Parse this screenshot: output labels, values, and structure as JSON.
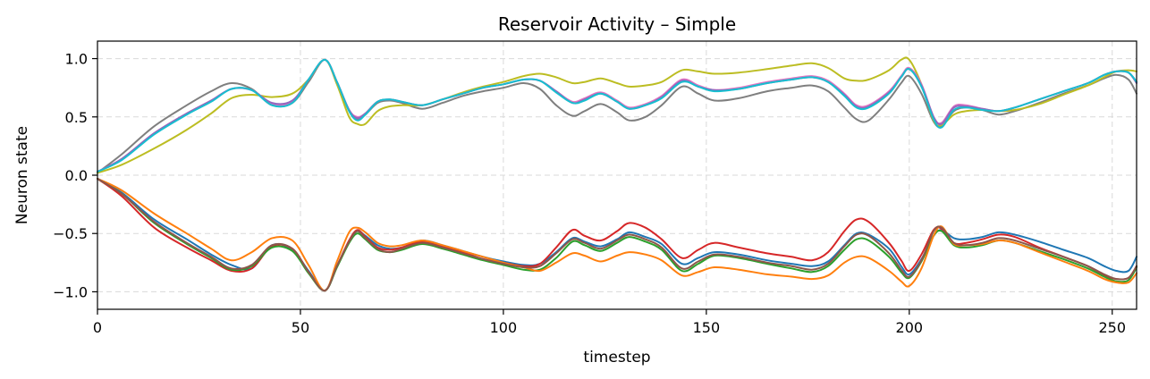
{
  "chart_data": {
    "type": "line",
    "title": "Reservoir Activity – Simple",
    "xlabel": "timestep",
    "ylabel": "Neuron state",
    "xlim": [
      0,
      256
    ],
    "ylim": [
      -1.15,
      1.15
    ],
    "xticks": [
      0,
      50,
      100,
      150,
      200,
      250
    ],
    "xtick_labels": [
      "0",
      "50",
      "100",
      "150",
      "200",
      "250"
    ],
    "yticks": [
      1.0,
      0.5,
      0.0,
      -0.5,
      -1.0
    ],
    "ytick_labels": [
      "1.0",
      "0.5",
      "0.0",
      "−0.5",
      "−1.0"
    ],
    "grid": true,
    "legend": "none",
    "x": [
      0,
      6,
      14,
      22,
      28,
      33,
      38,
      43,
      48,
      52,
      56,
      59,
      62,
      64,
      66,
      69,
      72,
      75,
      80,
      85,
      90,
      95,
      100,
      105,
      109,
      113,
      117,
      120,
      124,
      128,
      131,
      135,
      139,
      144,
      148,
      152,
      158,
      165,
      171,
      176,
      180,
      184,
      187,
      190,
      195,
      198,
      200,
      203,
      206,
      208,
      211,
      214,
      218,
      222,
      226,
      232,
      238,
      244,
      248,
      251,
      254,
      256
    ],
    "series": [
      {
        "color": "#7f7f7f",
        "values": [
          0.02,
          0.18,
          0.42,
          0.6,
          0.72,
          0.79,
          0.74,
          0.6,
          0.62,
          0.8,
          0.99,
          0.8,
          0.55,
          0.48,
          0.52,
          0.62,
          0.64,
          0.62,
          0.57,
          0.62,
          0.68,
          0.72,
          0.75,
          0.79,
          0.74,
          0.6,
          0.51,
          0.55,
          0.61,
          0.54,
          0.47,
          0.5,
          0.6,
          0.76,
          0.7,
          0.64,
          0.66,
          0.72,
          0.75,
          0.77,
          0.72,
          0.58,
          0.48,
          0.47,
          0.65,
          0.79,
          0.85,
          0.7,
          0.46,
          0.42,
          0.55,
          0.58,
          0.56,
          0.52,
          0.55,
          0.62,
          0.7,
          0.77,
          0.83,
          0.86,
          0.82,
          0.7
        ]
      },
      {
        "color": "#bcbd22",
        "values": [
          0.02,
          0.09,
          0.23,
          0.39,
          0.53,
          0.66,
          0.69,
          0.67,
          0.7,
          0.82,
          0.99,
          0.78,
          0.5,
          0.44,
          0.44,
          0.55,
          0.59,
          0.6,
          0.6,
          0.65,
          0.71,
          0.76,
          0.8,
          0.85,
          0.87,
          0.84,
          0.79,
          0.8,
          0.83,
          0.79,
          0.76,
          0.77,
          0.8,
          0.9,
          0.89,
          0.87,
          0.88,
          0.91,
          0.94,
          0.96,
          0.92,
          0.83,
          0.81,
          0.82,
          0.9,
          0.99,
          0.99,
          0.78,
          0.47,
          0.43,
          0.52,
          0.55,
          0.56,
          0.55,
          0.56,
          0.61,
          0.69,
          0.77,
          0.84,
          0.89,
          0.9,
          0.89
        ]
      },
      {
        "color": "#e377c2",
        "values": [
          0.03,
          0.14,
          0.36,
          0.53,
          0.64,
          0.74,
          0.73,
          0.61,
          0.63,
          0.82,
          0.99,
          0.8,
          0.56,
          0.5,
          0.53,
          0.63,
          0.65,
          0.63,
          0.6,
          0.65,
          0.7,
          0.75,
          0.78,
          0.82,
          0.81,
          0.72,
          0.63,
          0.66,
          0.71,
          0.64,
          0.58,
          0.61,
          0.68,
          0.82,
          0.77,
          0.73,
          0.75,
          0.8,
          0.83,
          0.85,
          0.81,
          0.7,
          0.6,
          0.6,
          0.72,
          0.85,
          0.92,
          0.78,
          0.5,
          0.45,
          0.59,
          0.6,
          0.57,
          0.55,
          0.58,
          0.65,
          0.72,
          0.79,
          0.86,
          0.89,
          0.88,
          0.8
        ]
      },
      {
        "color": "#9467bd",
        "values": [
          0.03,
          0.14,
          0.36,
          0.53,
          0.64,
          0.74,
          0.73,
          0.62,
          0.64,
          0.82,
          0.99,
          0.8,
          0.56,
          0.49,
          0.53,
          0.63,
          0.65,
          0.63,
          0.6,
          0.65,
          0.7,
          0.75,
          0.78,
          0.82,
          0.81,
          0.72,
          0.62,
          0.65,
          0.7,
          0.63,
          0.57,
          0.6,
          0.67,
          0.81,
          0.76,
          0.73,
          0.74,
          0.79,
          0.82,
          0.84,
          0.8,
          0.69,
          0.59,
          0.59,
          0.71,
          0.84,
          0.91,
          0.77,
          0.5,
          0.44,
          0.58,
          0.59,
          0.57,
          0.55,
          0.58,
          0.65,
          0.72,
          0.79,
          0.86,
          0.89,
          0.88,
          0.79
        ]
      },
      {
        "color": "#17becf",
        "values": [
          0.03,
          0.13,
          0.35,
          0.52,
          0.63,
          0.74,
          0.73,
          0.6,
          0.62,
          0.82,
          0.99,
          0.8,
          0.55,
          0.47,
          0.52,
          0.63,
          0.65,
          0.63,
          0.6,
          0.65,
          0.7,
          0.75,
          0.78,
          0.82,
          0.81,
          0.71,
          0.62,
          0.64,
          0.7,
          0.63,
          0.57,
          0.6,
          0.66,
          0.8,
          0.76,
          0.72,
          0.74,
          0.79,
          0.82,
          0.84,
          0.8,
          0.68,
          0.58,
          0.58,
          0.7,
          0.84,
          0.91,
          0.76,
          0.48,
          0.41,
          0.56,
          0.58,
          0.56,
          0.55,
          0.58,
          0.65,
          0.72,
          0.79,
          0.86,
          0.89,
          0.88,
          0.8
        ]
      },
      {
        "color": "#1f77b4",
        "values": [
          -0.03,
          -0.15,
          -0.38,
          -0.55,
          -0.68,
          -0.77,
          -0.8,
          -0.6,
          -0.64,
          -0.82,
          -0.99,
          -0.78,
          -0.57,
          -0.48,
          -0.52,
          -0.6,
          -0.63,
          -0.62,
          -0.56,
          -0.6,
          -0.65,
          -0.7,
          -0.74,
          -0.77,
          -0.76,
          -0.66,
          -0.54,
          -0.57,
          -0.61,
          -0.55,
          -0.49,
          -0.53,
          -0.59,
          -0.76,
          -0.71,
          -0.66,
          -0.68,
          -0.73,
          -0.76,
          -0.78,
          -0.74,
          -0.6,
          -0.5,
          -0.51,
          -0.63,
          -0.78,
          -0.85,
          -0.72,
          -0.52,
          -0.47,
          -0.54,
          -0.55,
          -0.53,
          -0.49,
          -0.51,
          -0.57,
          -0.64,
          -0.71,
          -0.78,
          -0.82,
          -0.82,
          -0.7
        ]
      },
      {
        "color": "#d62728",
        "values": [
          -0.03,
          -0.18,
          -0.45,
          -0.62,
          -0.73,
          -0.82,
          -0.8,
          -0.61,
          -0.63,
          -0.83,
          -0.99,
          -0.78,
          -0.56,
          -0.47,
          -0.53,
          -0.62,
          -0.64,
          -0.62,
          -0.57,
          -0.61,
          -0.66,
          -0.72,
          -0.75,
          -0.78,
          -0.76,
          -0.62,
          -0.47,
          -0.52,
          -0.56,
          -0.48,
          -0.41,
          -0.45,
          -0.55,
          -0.71,
          -0.64,
          -0.58,
          -0.62,
          -0.67,
          -0.7,
          -0.73,
          -0.66,
          -0.48,
          -0.38,
          -0.4,
          -0.58,
          -0.73,
          -0.82,
          -0.68,
          -0.47,
          -0.46,
          -0.58,
          -0.58,
          -0.55,
          -0.51,
          -0.53,
          -0.62,
          -0.7,
          -0.78,
          -0.86,
          -0.89,
          -0.88,
          -0.78
        ]
      },
      {
        "color": "#2ca02c",
        "values": [
          -0.03,
          -0.16,
          -0.41,
          -0.59,
          -0.71,
          -0.81,
          -0.78,
          -0.62,
          -0.65,
          -0.84,
          -0.99,
          -0.79,
          -0.58,
          -0.5,
          -0.55,
          -0.64,
          -0.66,
          -0.64,
          -0.59,
          -0.63,
          -0.68,
          -0.73,
          -0.77,
          -0.81,
          -0.81,
          -0.71,
          -0.57,
          -0.6,
          -0.65,
          -0.58,
          -0.53,
          -0.57,
          -0.64,
          -0.82,
          -0.76,
          -0.69,
          -0.71,
          -0.76,
          -0.8,
          -0.83,
          -0.78,
          -0.64,
          -0.55,
          -0.56,
          -0.7,
          -0.83,
          -0.88,
          -0.74,
          -0.52,
          -0.48,
          -0.6,
          -0.62,
          -0.6,
          -0.56,
          -0.58,
          -0.65,
          -0.72,
          -0.8,
          -0.87,
          -0.91,
          -0.9,
          -0.79
        ]
      },
      {
        "color": "#ff7f0e",
        "values": [
          -0.03,
          -0.13,
          -0.33,
          -0.5,
          -0.63,
          -0.73,
          -0.66,
          -0.54,
          -0.56,
          -0.77,
          -0.99,
          -0.74,
          -0.49,
          -0.45,
          -0.49,
          -0.58,
          -0.61,
          -0.6,
          -0.56,
          -0.6,
          -0.65,
          -0.7,
          -0.75,
          -0.79,
          -0.82,
          -0.75,
          -0.67,
          -0.69,
          -0.74,
          -0.69,
          -0.66,
          -0.68,
          -0.73,
          -0.86,
          -0.83,
          -0.79,
          -0.81,
          -0.85,
          -0.87,
          -0.89,
          -0.86,
          -0.75,
          -0.7,
          -0.71,
          -0.82,
          -0.91,
          -0.95,
          -0.8,
          -0.52,
          -0.44,
          -0.59,
          -0.6,
          -0.59,
          -0.56,
          -0.58,
          -0.66,
          -0.74,
          -0.82,
          -0.89,
          -0.92,
          -0.92,
          -0.84
        ]
      },
      {
        "color": "#8c564b",
        "values": [
          -0.03,
          -0.16,
          -0.4,
          -0.58,
          -0.7,
          -0.8,
          -0.77,
          -0.6,
          -0.63,
          -0.83,
          -0.99,
          -0.78,
          -0.57,
          -0.48,
          -0.54,
          -0.63,
          -0.66,
          -0.63,
          -0.58,
          -0.62,
          -0.67,
          -0.72,
          -0.76,
          -0.79,
          -0.78,
          -0.67,
          -0.55,
          -0.58,
          -0.63,
          -0.56,
          -0.51,
          -0.55,
          -0.62,
          -0.8,
          -0.74,
          -0.68,
          -0.7,
          -0.75,
          -0.78,
          -0.81,
          -0.76,
          -0.61,
          -0.51,
          -0.52,
          -0.67,
          -0.81,
          -0.87,
          -0.73,
          -0.48,
          -0.45,
          -0.58,
          -0.6,
          -0.58,
          -0.54,
          -0.56,
          -0.63,
          -0.7,
          -0.78,
          -0.85,
          -0.89,
          -0.88,
          -0.78
        ]
      }
    ]
  }
}
